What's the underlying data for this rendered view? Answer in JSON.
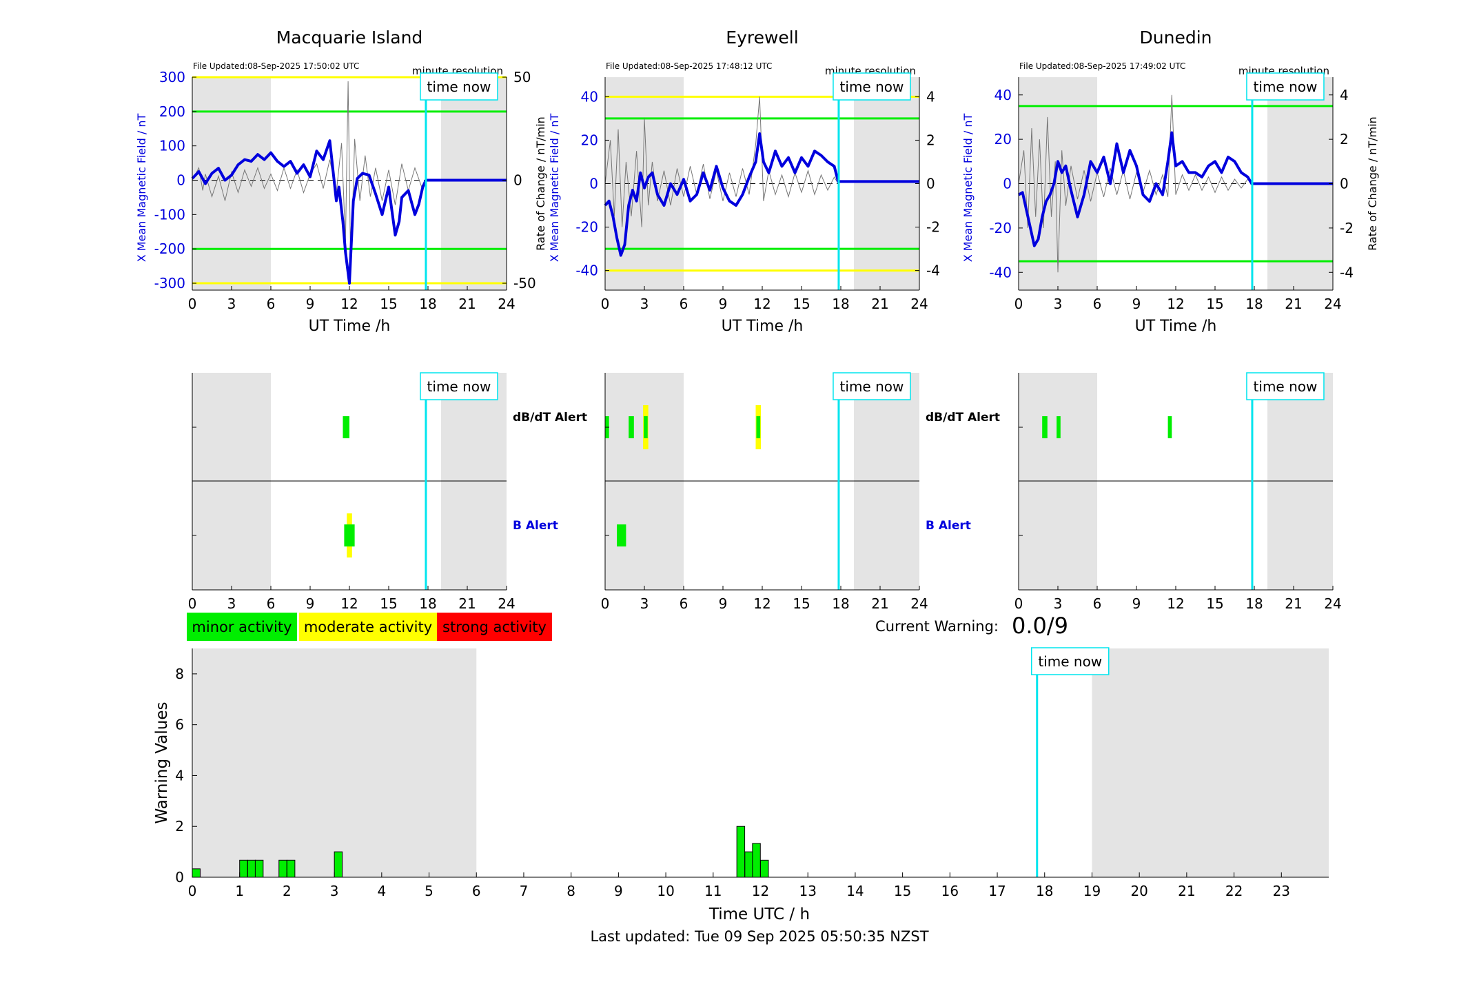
{
  "stations": [
    {
      "name": "Macquarie Island",
      "file_updated": "File Updated:08-Sep-2025 17:50:02 UTC",
      "resolution_label": "minute resolution",
      "ylabel_left": "X Mean Magnetic Field / nT",
      "ylabel_right": "",
      "xlabel": "UT Time /h",
      "ylim_left": [
        -320,
        300
      ],
      "ylim_right": [
        -53.33,
        50
      ],
      "yticks_left": [
        -300,
        -200,
        -100,
        0,
        100,
        200,
        300
      ],
      "yticks_right": [
        -50,
        0,
        50
      ],
      "green_thresholds": [
        200,
        -200
      ],
      "yellow_thresholds": [
        300,
        -300
      ],
      "field_series": [
        [
          0,
          5
        ],
        [
          0.5,
          25
        ],
        [
          1,
          -10
        ],
        [
          1.5,
          20
        ],
        [
          2,
          35
        ],
        [
          2.5,
          0
        ],
        [
          3,
          15
        ],
        [
          3.5,
          45
        ],
        [
          4,
          60
        ],
        [
          4.5,
          55
        ],
        [
          5,
          75
        ],
        [
          5.5,
          60
        ],
        [
          6,
          80
        ],
        [
          6.5,
          55
        ],
        [
          7,
          40
        ],
        [
          7.5,
          55
        ],
        [
          8,
          20
        ],
        [
          8.5,
          45
        ],
        [
          9,
          10
        ],
        [
          9.5,
          85
        ],
        [
          10,
          60
        ],
        [
          10.5,
          115
        ],
        [
          11,
          -60
        ],
        [
          11.2,
          -20
        ],
        [
          11.5,
          -120
        ],
        [
          11.7,
          -210
        ],
        [
          12,
          -300
        ],
        [
          12.3,
          -60
        ],
        [
          12.6,
          5
        ],
        [
          13,
          20
        ],
        [
          13.5,
          15
        ],
        [
          14,
          -40
        ],
        [
          14.5,
          -100
        ],
        [
          15,
          -20
        ],
        [
          15.5,
          -160
        ],
        [
          15.8,
          -120
        ],
        [
          16,
          -50
        ],
        [
          16.5,
          -30
        ],
        [
          17,
          -100
        ],
        [
          17.3,
          -70
        ],
        [
          17.6,
          -20
        ],
        [
          17.84,
          0
        ],
        [
          24,
          0
        ]
      ],
      "roc_series": [
        [
          0,
          0
        ],
        [
          0.5,
          6
        ],
        [
          0.8,
          -5
        ],
        [
          1,
          3
        ],
        [
          1.5,
          -8
        ],
        [
          2,
          2
        ],
        [
          2.5,
          -10
        ],
        [
          3,
          4
        ],
        [
          3.5,
          -6
        ],
        [
          4,
          5
        ],
        [
          4.5,
          -3
        ],
        [
          5,
          6
        ],
        [
          5.5,
          -4
        ],
        [
          6,
          3
        ],
        [
          6.5,
          -5
        ],
        [
          7,
          6
        ],
        [
          7.5,
          -4
        ],
        [
          8,
          5
        ],
        [
          8.5,
          -6
        ],
        [
          9,
          3
        ],
        [
          9.5,
          8
        ],
        [
          10,
          -4
        ],
        [
          10.5,
          10
        ],
        [
          11,
          -6
        ],
        [
          11.4,
          18
        ],
        [
          11.7,
          -30
        ],
        [
          11.9,
          48
        ],
        [
          12.1,
          -45
        ],
        [
          12.4,
          20
        ],
        [
          12.8,
          -10
        ],
        [
          13.2,
          12
        ],
        [
          13.6,
          -8
        ],
        [
          14,
          6
        ],
        [
          14.5,
          -10
        ],
        [
          15,
          5
        ],
        [
          15.5,
          -12
        ],
        [
          16,
          8
        ],
        [
          16.5,
          -5
        ],
        [
          17,
          6
        ],
        [
          17.5,
          -3
        ],
        [
          17.84,
          0
        ]
      ],
      "day_shading": [
        [
          0,
          6
        ],
        [
          19,
          24
        ]
      ],
      "time_now": 17.84,
      "time_now_label": "time now",
      "xticks": [
        0,
        3,
        6,
        9,
        12,
        15,
        18,
        21,
        24
      ],
      "alerts": {
        "dbdt_label": "dB/dT Alert",
        "b_label": "B Alert",
        "dbdt": [
          {
            "start": 11.5,
            "end": 12.0,
            "level": "minor"
          }
        ],
        "b": [
          {
            "start": 11.8,
            "end": 12.2,
            "level": "moderate"
          },
          {
            "start": 11.6,
            "end": 12.4,
            "level": "minor"
          }
        ]
      }
    },
    {
      "name": "Eyrewell",
      "file_updated": "File Updated:08-Sep-2025 17:48:12 UTC",
      "resolution_label": "minute resolution",
      "ylabel_left": "X Mean Magnetic Field / nT",
      "ylabel_right": "Rate of Change / nT/min",
      "xlabel": "UT Time /h",
      "ylim_left": [
        -49,
        49
      ],
      "ylim_right": [
        -4.9,
        4.9
      ],
      "yticks_left": [
        -40,
        -20,
        0,
        20,
        40
      ],
      "yticks_right": [
        -4,
        -2,
        0,
        2,
        4
      ],
      "green_thresholds": [
        30,
        -30
      ],
      "yellow_thresholds": [
        40,
        -40
      ],
      "field_series": [
        [
          0,
          -10
        ],
        [
          0.3,
          -8
        ],
        [
          0.6,
          -15
        ],
        [
          0.9,
          -25
        ],
        [
          1.2,
          -33
        ],
        [
          1.5,
          -28
        ],
        [
          1.8,
          -10
        ],
        [
          2.1,
          -3
        ],
        [
          2.4,
          -8
        ],
        [
          2.7,
          5
        ],
        [
          3,
          -2
        ],
        [
          3.3,
          3
        ],
        [
          3.6,
          5
        ],
        [
          4,
          -5
        ],
        [
          4.5,
          -10
        ],
        [
          5,
          0
        ],
        [
          5.5,
          -5
        ],
        [
          6,
          2
        ],
        [
          6.5,
          -8
        ],
        [
          7,
          -5
        ],
        [
          7.5,
          5
        ],
        [
          8,
          -3
        ],
        [
          8.5,
          8
        ],
        [
          9,
          -2
        ],
        [
          9.5,
          -8
        ],
        [
          10,
          -10
        ],
        [
          10.5,
          -5
        ],
        [
          11,
          3
        ],
        [
          11.5,
          10
        ],
        [
          11.8,
          23
        ],
        [
          12.1,
          10
        ],
        [
          12.5,
          5
        ],
        [
          13,
          15
        ],
        [
          13.5,
          8
        ],
        [
          14,
          12
        ],
        [
          14.5,
          5
        ],
        [
          15,
          12
        ],
        [
          15.5,
          8
        ],
        [
          16,
          15
        ],
        [
          16.5,
          13
        ],
        [
          17,
          10
        ],
        [
          17.5,
          8
        ],
        [
          17.8,
          1
        ],
        [
          24,
          1
        ]
      ],
      "roc_series": [
        [
          0,
          0
        ],
        [
          0.4,
          2
        ],
        [
          0.7,
          -1.5
        ],
        [
          1,
          2.5
        ],
        [
          1.3,
          -2
        ],
        [
          1.6,
          1
        ],
        [
          2,
          -1.5
        ],
        [
          2.4,
          1.5
        ],
        [
          2.8,
          -2
        ],
        [
          3,
          3
        ],
        [
          3.3,
          -1
        ],
        [
          3.6,
          1
        ],
        [
          4,
          -0.8
        ],
        [
          4.5,
          0.6
        ],
        [
          5,
          -1
        ],
        [
          5.5,
          0.7
        ],
        [
          6,
          -0.6
        ],
        [
          6.5,
          0.8
        ],
        [
          7,
          -0.5
        ],
        [
          7.5,
          0.9
        ],
        [
          8,
          -0.7
        ],
        [
          8.5,
          0.6
        ],
        [
          9,
          -0.8
        ],
        [
          9.5,
          0.5
        ],
        [
          10,
          -0.6
        ],
        [
          10.5,
          0.7
        ],
        [
          11,
          -0.5
        ],
        [
          11.5,
          1.8
        ],
        [
          11.8,
          4
        ],
        [
          12.1,
          -0.8
        ],
        [
          12.5,
          0.6
        ],
        [
          13,
          -0.5
        ],
        [
          13.5,
          0.4
        ],
        [
          14,
          -0.6
        ],
        [
          14.5,
          0.5
        ],
        [
          15,
          -0.4
        ],
        [
          15.5,
          0.6
        ],
        [
          16,
          -0.5
        ],
        [
          16.5,
          0.4
        ],
        [
          17,
          -0.3
        ],
        [
          17.5,
          0.3
        ],
        [
          17.8,
          0
        ]
      ],
      "day_shading": [
        [
          0,
          6
        ],
        [
          19,
          24
        ]
      ],
      "time_now": 17.84,
      "time_now_label": "time now",
      "xticks": [
        0,
        3,
        6,
        9,
        12,
        15,
        18,
        21,
        24
      ],
      "alerts": {
        "dbdt_label": "dB/dT Alert",
        "b_label": "B Alert",
        "dbdt": [
          {
            "start": 0.0,
            "end": 0.3,
            "level": "minor"
          },
          {
            "start": 1.8,
            "end": 2.2,
            "level": "minor"
          },
          {
            "start": 2.9,
            "end": 3.3,
            "level": "moderate"
          },
          {
            "start": 2.95,
            "end": 3.25,
            "level": "minor"
          },
          {
            "start": 11.5,
            "end": 11.9,
            "level": "moderate"
          },
          {
            "start": 11.55,
            "end": 11.85,
            "level": "minor"
          }
        ],
        "b": [
          {
            "start": 0.9,
            "end": 1.6,
            "level": "minor"
          }
        ]
      }
    },
    {
      "name": "Dunedin",
      "file_updated": "File Updated:08-Sep-2025 17:49:02 UTC",
      "resolution_label": "minute resolution",
      "ylabel_left": "X Mean Magnetic Field / nT",
      "ylabel_right": "Rate of Change / nT/min",
      "xlabel": "UT Time /h",
      "ylim_left": [
        -48,
        48
      ],
      "ylim_right": [
        -4.8,
        4.8
      ],
      "yticks_left": [
        -40,
        -20,
        0,
        20,
        40
      ],
      "yticks_right": [
        -4,
        -2,
        0,
        2,
        4
      ],
      "green_thresholds": [
        35,
        -35
      ],
      "yellow_thresholds": [],
      "field_series": [
        [
          0,
          -5
        ],
        [
          0.3,
          -4
        ],
        [
          0.6,
          -12
        ],
        [
          0.9,
          -20
        ],
        [
          1.2,
          -28
        ],
        [
          1.5,
          -25
        ],
        [
          1.8,
          -15
        ],
        [
          2.1,
          -8
        ],
        [
          2.4,
          -5
        ],
        [
          2.7,
          0
        ],
        [
          3,
          10
        ],
        [
          3.3,
          5
        ],
        [
          3.6,
          8
        ],
        [
          4,
          -3
        ],
        [
          4.5,
          -15
        ],
        [
          5,
          -5
        ],
        [
          5.5,
          10
        ],
        [
          6,
          5
        ],
        [
          6.5,
          12
        ],
        [
          7,
          0
        ],
        [
          7.5,
          18
        ],
        [
          8,
          5
        ],
        [
          8.5,
          15
        ],
        [
          9,
          8
        ],
        [
          9.5,
          -5
        ],
        [
          10,
          -8
        ],
        [
          10.5,
          0
        ],
        [
          11,
          -5
        ],
        [
          11.4,
          10
        ],
        [
          11.7,
          23
        ],
        [
          12,
          8
        ],
        [
          12.5,
          10
        ],
        [
          13,
          5
        ],
        [
          13.5,
          5
        ],
        [
          14,
          3
        ],
        [
          14.5,
          8
        ],
        [
          15,
          10
        ],
        [
          15.5,
          5
        ],
        [
          16,
          12
        ],
        [
          16.5,
          10
        ],
        [
          17,
          5
        ],
        [
          17.5,
          3
        ],
        [
          17.8,
          0
        ],
        [
          24,
          0
        ]
      ],
      "roc_series": [
        [
          0,
          0
        ],
        [
          0.4,
          1.5
        ],
        [
          0.7,
          -2
        ],
        [
          1,
          2.5
        ],
        [
          1.3,
          -1.5
        ],
        [
          1.6,
          2
        ],
        [
          1.9,
          -2
        ],
        [
          2.2,
          3
        ],
        [
          2.5,
          -1.5
        ],
        [
          2.8,
          1
        ],
        [
          3,
          -4
        ],
        [
          3.3,
          1.5
        ],
        [
          3.6,
          -1
        ],
        [
          4,
          0.8
        ],
        [
          4.5,
          -0.7
        ],
        [
          5,
          0.6
        ],
        [
          5.5,
          -0.8
        ],
        [
          6,
          0.5
        ],
        [
          6.5,
          -0.6
        ],
        [
          7,
          0.7
        ],
        [
          7.5,
          -0.5
        ],
        [
          8,
          0.6
        ],
        [
          8.5,
          -0.7
        ],
        [
          9,
          0.5
        ],
        [
          9.5,
          -0.4
        ],
        [
          10,
          0.6
        ],
        [
          10.5,
          -0.5
        ],
        [
          11,
          0.4
        ],
        [
          11.4,
          -0.6
        ],
        [
          11.7,
          4
        ],
        [
          12,
          -0.5
        ],
        [
          12.5,
          0.4
        ],
        [
          13,
          -0.3
        ],
        [
          13.5,
          0.4
        ],
        [
          14,
          -0.3
        ],
        [
          14.5,
          0.3
        ],
        [
          15,
          -0.4
        ],
        [
          15.5,
          0.3
        ],
        [
          16,
          -0.3
        ],
        [
          16.5,
          0.2
        ],
        [
          17,
          -0.2
        ],
        [
          17.5,
          0.2
        ],
        [
          17.8,
          0
        ]
      ],
      "day_shading": [
        [
          0,
          6
        ],
        [
          19,
          24
        ]
      ],
      "time_now": 17.84,
      "time_now_label": "time now",
      "xticks": [
        0,
        3,
        6,
        9,
        12,
        15,
        18,
        21,
        24
      ],
      "alerts": {
        "dbdt_label": "",
        "b_label": "",
        "dbdt": [
          {
            "start": 1.8,
            "end": 2.2,
            "level": "minor"
          },
          {
            "start": 2.9,
            "end": 3.2,
            "level": "minor"
          },
          {
            "start": 11.4,
            "end": 11.7,
            "level": "minor"
          }
        ],
        "b": []
      }
    }
  ],
  "legend": {
    "minor": "minor activity",
    "moderate": "moderate activity",
    "strong": "strong activity"
  },
  "current_warning": {
    "label": "Current Warning:",
    "value": "0.0/9"
  },
  "colors": {
    "minor": "#00ee00",
    "moderate": "#ffff00",
    "strong": "#ff0000",
    "field": "#0000dd",
    "time_now": "#00e5ee",
    "shading": "#e4e4e4",
    "threshold_green": "#00ee00",
    "threshold_yellow": "#ffff00"
  },
  "chart_data": {
    "type": "bar",
    "ylabel": "Warning Values",
    "xlabel": "Time UTC / h",
    "ylim": [
      0,
      9
    ],
    "xlim": [
      0,
      24
    ],
    "yticks": [
      0,
      2,
      4,
      6,
      8
    ],
    "xticks": [
      0,
      1,
      2,
      3,
      4,
      5,
      6,
      7,
      8,
      9,
      10,
      11,
      12,
      13,
      14,
      15,
      16,
      17,
      18,
      19,
      20,
      21,
      22,
      23
    ],
    "bar_width_h": 1,
    "bars": [
      [
        0.0,
        0.33
      ],
      [
        1.0,
        0.67
      ],
      [
        1.17,
        0.67
      ],
      [
        1.33,
        0.67
      ],
      [
        1.83,
        0.67
      ],
      [
        2.0,
        0.67
      ],
      [
        3.0,
        1.0
      ],
      [
        11.5,
        2.0
      ],
      [
        11.67,
        1.0
      ],
      [
        11.83,
        1.33
      ],
      [
        12.0,
        0.67
      ]
    ],
    "day_shading": [
      [
        0,
        6
      ],
      [
        19,
        24
      ]
    ],
    "time_now": 17.84,
    "time_now_label": "time now"
  },
  "footer": "Last updated: Tue 09 Sep 2025 05:50:35 NZST"
}
